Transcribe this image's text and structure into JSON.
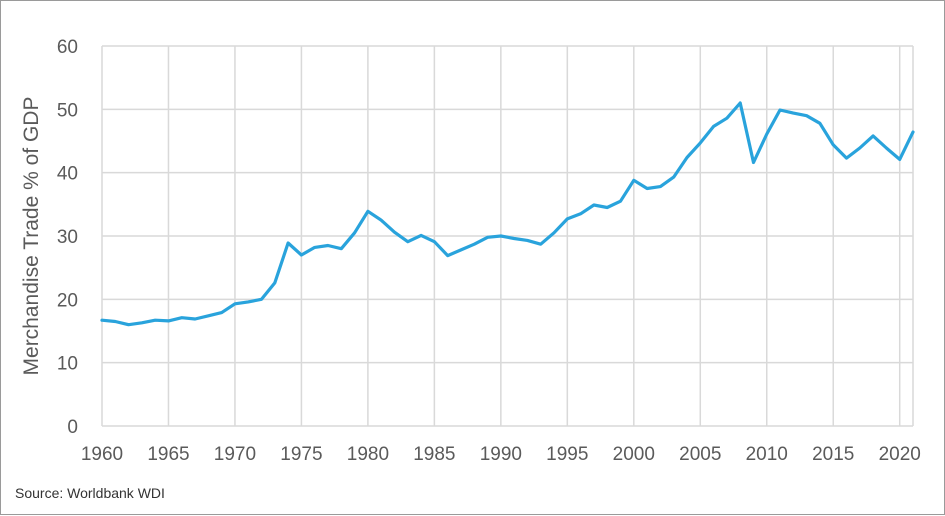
{
  "chart_data": {
    "type": "line",
    "title": "",
    "xlabel": "",
    "ylabel": "Merchandise Trade % of GDP",
    "xlim": [
      1960,
      2021
    ],
    "ylim": [
      0,
      60
    ],
    "x_ticks": [
      1960,
      1965,
      1970,
      1975,
      1980,
      1985,
      1990,
      1995,
      2000,
      2005,
      2010,
      2015,
      2020
    ],
    "y_ticks": [
      0,
      10,
      20,
      30,
      40,
      50,
      60
    ],
    "grid": true,
    "line_color": "#29a3dc",
    "series": [
      {
        "x": [
          1960,
          1961,
          1962,
          1963,
          1964,
          1965,
          1966,
          1967,
          1968,
          1969,
          1970,
          1971,
          1972,
          1973,
          1974,
          1975,
          1976,
          1977,
          1978,
          1979,
          1980,
          1981,
          1982,
          1983,
          1984,
          1985,
          1986,
          1987,
          1988,
          1989,
          1990,
          1991,
          1992,
          1993,
          1994,
          1995,
          1996,
          1997,
          1998,
          1999,
          2000,
          2001,
          2002,
          2003,
          2004,
          2005,
          2006,
          2007,
          2008,
          2009,
          2010,
          2011,
          2012,
          2013,
          2014,
          2015,
          2016,
          2017,
          2018,
          2019,
          2020,
          2021
        ],
        "values": [
          16.7,
          16.5,
          16.0,
          16.3,
          16.7,
          16.6,
          17.1,
          16.9,
          17.4,
          17.9,
          19.3,
          19.6,
          20.0,
          22.6,
          28.9,
          27.0,
          28.2,
          28.5,
          28.0,
          30.5,
          33.9,
          32.5,
          30.6,
          29.1,
          30.1,
          29.1,
          26.9,
          27.8,
          28.7,
          29.8,
          30.0,
          29.6,
          29.3,
          28.7,
          30.5,
          32.7,
          33.5,
          34.9,
          34.5,
          35.5,
          38.8,
          37.5,
          37.8,
          39.3,
          42.4,
          44.7,
          47.3,
          48.6,
          51.0,
          41.6,
          46.1,
          49.9,
          49.4,
          49.0,
          47.8,
          44.4,
          42.3,
          43.9,
          45.8,
          43.9,
          42.1,
          46.4
        ]
      }
    ]
  },
  "source_text": "Source: Worldbank WDI"
}
